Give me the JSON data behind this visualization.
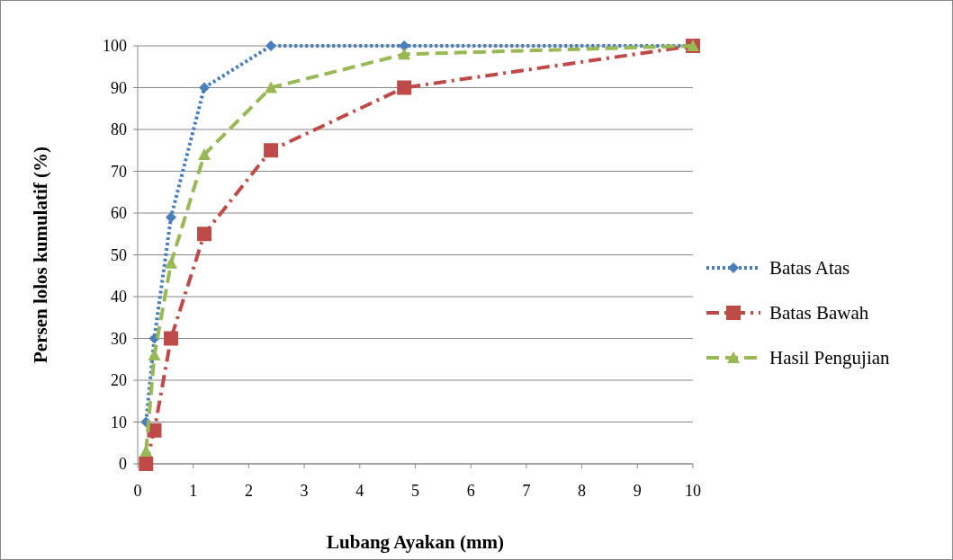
{
  "chart_data": {
    "type": "line",
    "xlabel": "Lubang Ayakan (mm)",
    "ylabel": "Persen  lolos kumulatif  (%)",
    "x": [
      0.15,
      0.3,
      0.6,
      1.2,
      2.4,
      4.8,
      10
    ],
    "series": [
      {
        "name": "Batas Atas",
        "color": "#4a7ebb",
        "values": [
          10,
          30,
          59,
          90,
          100,
          100,
          100
        ],
        "marker": "diamond",
        "line_style": "dotted"
      },
      {
        "name": "Batas Bawah",
        "color": "#be4b48",
        "values": [
          0,
          8,
          30,
          55,
          75,
          90,
          100
        ],
        "marker": "square",
        "line_style": "dashdot"
      },
      {
        "name": "Hasil Pengujian",
        "color": "#98b954",
        "values": [
          3,
          26,
          48,
          74,
          90,
          98,
          100
        ],
        "marker": "triangle",
        "line_style": "dashed"
      }
    ],
    "xlim": [
      0,
      10
    ],
    "xticks": [
      0,
      1,
      2,
      3,
      4,
      5,
      6,
      7,
      8,
      9,
      10
    ],
    "ylim": [
      0,
      100
    ],
    "yticks": [
      0,
      10,
      20,
      30,
      40,
      50,
      60,
      70,
      80,
      90,
      100
    ],
    "grid": "y",
    "legend": "right"
  }
}
